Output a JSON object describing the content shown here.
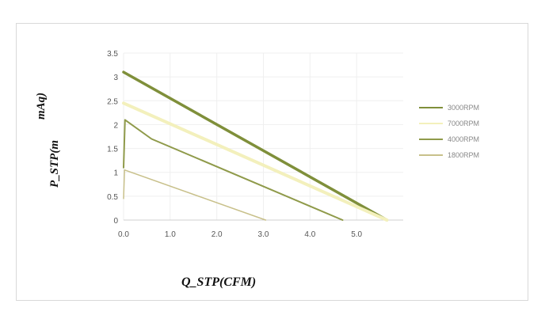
{
  "chart_data": {
    "type": "line",
    "title": "",
    "xlabel": "Q_STP(CFM)",
    "ylabel_parts": [
      "P_STP(m",
      "mAq)"
    ],
    "xlim": [
      0,
      6
    ],
    "ylim": [
      0,
      3.5
    ],
    "x_ticks": [
      "0.0",
      "1.0",
      "2.0",
      "3.0",
      "4.0",
      "5.0"
    ],
    "y_ticks": [
      "0",
      "0.5",
      "1",
      "1.5",
      "2",
      "2.5",
      "3",
      "3.5"
    ],
    "grid": true,
    "legend_position": "right",
    "series": [
      {
        "name": "3000RPM",
        "color": "#7f8f3a",
        "width": 3.5,
        "x": [
          0,
          5.65
        ],
        "y": [
          3.1,
          0
        ]
      },
      {
        "name": "7000RPM",
        "color": "#f3f0bc",
        "width": 4,
        "x": [
          0,
          5.65
        ],
        "y": [
          2.45,
          0
        ]
      },
      {
        "name": "4000RPM",
        "color": "#8f9a4a",
        "width": 2,
        "x": [
          0,
          0.03,
          0.6,
          4.7
        ],
        "y": [
          1.1,
          2.1,
          1.7,
          0
        ]
      },
      {
        "name": "1800RPM",
        "color": "#c8c08a",
        "width": 1.5,
        "x": [
          0,
          0.02,
          3.05
        ],
        "y": [
          0.45,
          1.05,
          0
        ]
      }
    ]
  }
}
